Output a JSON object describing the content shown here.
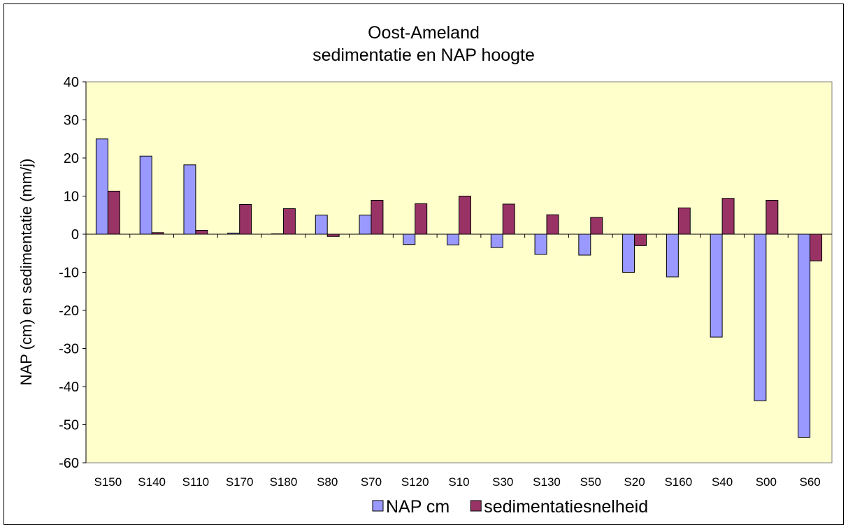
{
  "chart_data": {
    "type": "bar",
    "title": "Oost-Ameland",
    "subtitle": "sedimentatie en NAP hoogte",
    "y_label": "NAP (cm) en sedimentatie (mm/j)",
    "categories": [
      "S150",
      "S140",
      "S110",
      "S170",
      "S180",
      "S80",
      "S70",
      "S120",
      "S10",
      "S30",
      "S130",
      "S50",
      "S20",
      "S160",
      "S40",
      "S00",
      "S60"
    ],
    "series": [
      {
        "name": "NAP cm",
        "color": "#9999ff",
        "values": [
          25,
          20.5,
          18.2,
          0.3,
          0.1,
          5,
          5,
          -2.7,
          -2.8,
          -3.5,
          -5.3,
          -5.5,
          -10,
          -11.2,
          -27,
          -43.7,
          -53.3
        ]
      },
      {
        "name": "sedimentatiesnelheid",
        "color": "#993366",
        "values": [
          11.3,
          0.4,
          1,
          7.8,
          6.7,
          -0.6,
          8.9,
          8,
          10,
          7.9,
          5.1,
          4.4,
          -3,
          6.9,
          9.4,
          8.9,
          -7
        ]
      }
    ],
    "ylim": [
      -60,
      40
    ],
    "yticks": [
      -60,
      -50,
      -40,
      -30,
      -20,
      -10,
      0,
      10,
      20,
      30,
      40
    ],
    "grid": false,
    "legend": "bottom",
    "plot_background": "#ffffcc"
  }
}
